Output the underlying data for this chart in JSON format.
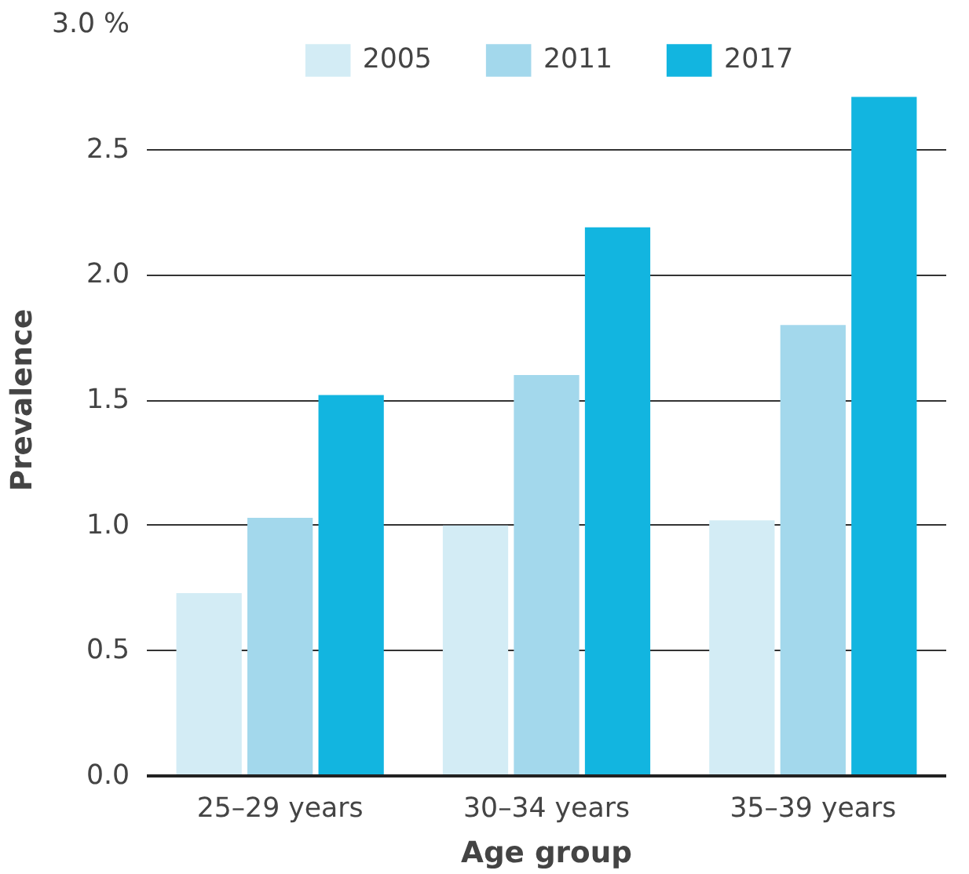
{
  "chart_data": {
    "type": "bar",
    "xlabel": "Age group",
    "ylabel": "Prevalence",
    "categories": [
      "25–29 years",
      "30–34 years",
      "35–39 years"
    ],
    "series": [
      {
        "name": "2005",
        "color": "#d3ecf5",
        "values": [
          0.73,
          1.0,
          1.02
        ]
      },
      {
        "name": "2011",
        "color": "#a3d8ec",
        "values": [
          1.03,
          1.6,
          1.8
        ]
      },
      {
        "name": "2017",
        "color": "#12b5e0",
        "values": [
          1.52,
          2.19,
          2.71
        ]
      }
    ],
    "ylim": [
      0,
      3.0
    ],
    "yticks": [
      {
        "value": 0,
        "label": "0.0"
      },
      {
        "value": 0.5,
        "label": "0.5"
      },
      {
        "value": 1.0,
        "label": "1.0"
      },
      {
        "value": 1.5,
        "label": "1.5"
      },
      {
        "value": 2.0,
        "label": "2.0"
      },
      {
        "value": 2.5,
        "label": "2.5"
      },
      {
        "value": 3.0,
        "label": "3.0 %"
      }
    ],
    "grid": "y",
    "legend": "top"
  }
}
